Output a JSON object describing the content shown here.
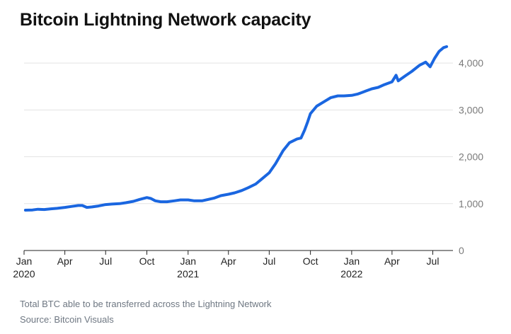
{
  "title": "Bitcoin Lightning Network capacity",
  "note": "Total BTC able to be transferred across the Lightning Network",
  "source": "Source: Bitcoin Visuals",
  "colors": {
    "line": "#1a66e0",
    "grid": "#e3e3e3",
    "axis": "#222222",
    "tick_text": "#7a7a7a",
    "footnote": "#6e7782"
  },
  "chart_data": {
    "type": "line",
    "title": "Bitcoin Lightning Network capacity",
    "xlabel": "",
    "ylabel": "",
    "x_range": [
      "2020-01-01",
      "2022-08-15"
    ],
    "ylim": [
      0,
      4500
    ],
    "y_ticks": [
      0,
      1000,
      2000,
      3000,
      4000
    ],
    "y_tick_labels": [
      "0",
      "1,000",
      "2,000",
      "3,000",
      "4,000"
    ],
    "y_axis_position": "right",
    "grid": "horizontal",
    "x_ticks": [
      {
        "date": "2020-01-01",
        "label": "Jan",
        "year": "2020"
      },
      {
        "date": "2020-04-01",
        "label": "Apr",
        "year": ""
      },
      {
        "date": "2020-07-01",
        "label": "Jul",
        "year": ""
      },
      {
        "date": "2020-10-01",
        "label": "Oct",
        "year": ""
      },
      {
        "date": "2021-01-01",
        "label": "Jan",
        "year": "2021"
      },
      {
        "date": "2021-04-01",
        "label": "Apr",
        "year": ""
      },
      {
        "date": "2021-07-01",
        "label": "Jul",
        "year": ""
      },
      {
        "date": "2021-10-01",
        "label": "Oct",
        "year": ""
      },
      {
        "date": "2022-01-01",
        "label": "Jan",
        "year": "2022"
      },
      {
        "date": "2022-04-01",
        "label": "Apr",
        "year": ""
      },
      {
        "date": "2022-07-01",
        "label": "Jul",
        "year": ""
      }
    ],
    "series": [
      {
        "values": [
          [
            "2020-01-04",
            860
          ],
          [
            "2020-01-20",
            865
          ],
          [
            "2020-02-01",
            880
          ],
          [
            "2020-02-15",
            875
          ],
          [
            "2020-03-01",
            890
          ],
          [
            "2020-03-15",
            900
          ],
          [
            "2020-04-01",
            920
          ],
          [
            "2020-04-15",
            940
          ],
          [
            "2020-05-01",
            960
          ],
          [
            "2020-05-10",
            960
          ],
          [
            "2020-05-20",
            920
          ],
          [
            "2020-06-01",
            930
          ],
          [
            "2020-06-15",
            950
          ],
          [
            "2020-07-01",
            980
          ],
          [
            "2020-07-15",
            990
          ],
          [
            "2020-08-01",
            1000
          ],
          [
            "2020-08-15",
            1020
          ],
          [
            "2020-09-01",
            1050
          ],
          [
            "2020-09-15",
            1090
          ],
          [
            "2020-10-01",
            1130
          ],
          [
            "2020-10-10",
            1110
          ],
          [
            "2020-10-20",
            1060
          ],
          [
            "2020-11-01",
            1040
          ],
          [
            "2020-11-15",
            1040
          ],
          [
            "2020-12-01",
            1060
          ],
          [
            "2020-12-15",
            1080
          ],
          [
            "2021-01-01",
            1080
          ],
          [
            "2021-01-15",
            1060
          ],
          [
            "2021-02-01",
            1060
          ],
          [
            "2021-02-15",
            1090
          ],
          [
            "2021-03-01",
            1120
          ],
          [
            "2021-03-15",
            1170
          ],
          [
            "2021-04-01",
            1200
          ],
          [
            "2021-04-15",
            1230
          ],
          [
            "2021-05-01",
            1280
          ],
          [
            "2021-05-15",
            1340
          ],
          [
            "2021-06-01",
            1420
          ],
          [
            "2021-06-15",
            1530
          ],
          [
            "2021-07-01",
            1660
          ],
          [
            "2021-07-15",
            1850
          ],
          [
            "2021-08-01",
            2130
          ],
          [
            "2021-08-15",
            2300
          ],
          [
            "2021-09-01",
            2380
          ],
          [
            "2021-09-10",
            2400
          ],
          [
            "2021-09-18",
            2570
          ],
          [
            "2021-09-25",
            2750
          ],
          [
            "2021-10-01",
            2920
          ],
          [
            "2021-10-15",
            3080
          ],
          [
            "2021-11-01",
            3180
          ],
          [
            "2021-11-15",
            3260
          ],
          [
            "2021-12-01",
            3300
          ],
          [
            "2021-12-15",
            3300
          ],
          [
            "2022-01-01",
            3310
          ],
          [
            "2022-01-15",
            3340
          ],
          [
            "2022-02-01",
            3400
          ],
          [
            "2022-02-15",
            3450
          ],
          [
            "2022-03-01",
            3480
          ],
          [
            "2022-03-15",
            3540
          ],
          [
            "2022-04-01",
            3600
          ],
          [
            "2022-04-10",
            3740
          ],
          [
            "2022-04-15",
            3620
          ],
          [
            "2022-05-01",
            3730
          ],
          [
            "2022-05-15",
            3820
          ],
          [
            "2022-06-01",
            3950
          ],
          [
            "2022-06-15",
            4020
          ],
          [
            "2022-06-25",
            3920
          ],
          [
            "2022-07-05",
            4100
          ],
          [
            "2022-07-15",
            4250
          ],
          [
            "2022-07-25",
            4330
          ],
          [
            "2022-08-01",
            4350
          ]
        ]
      }
    ]
  }
}
